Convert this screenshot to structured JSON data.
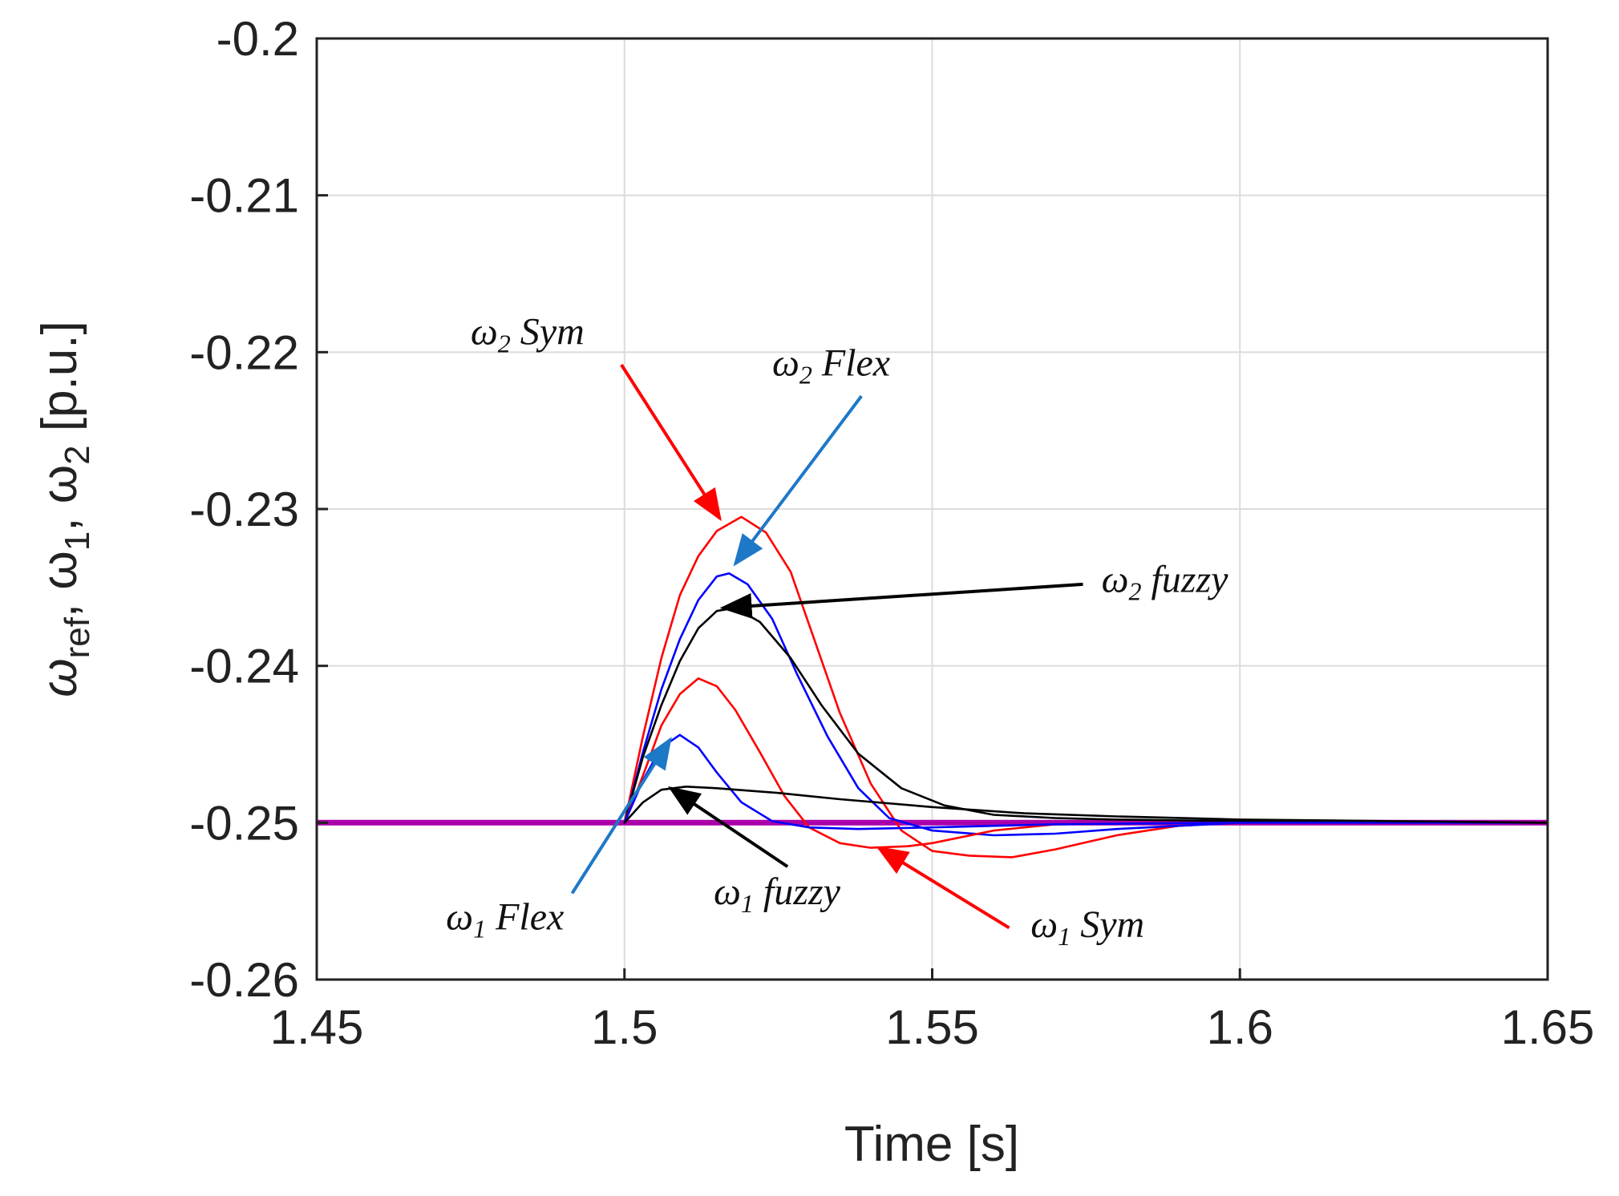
{
  "chart_data": {
    "type": "line",
    "title": "",
    "xlabel": "Time [s]",
    "ylabel": {
      "base": "ω",
      "ref_sub": "ref",
      "sep1": ", ω",
      "sub1": "1",
      "sep2": ", ω",
      "sub2": "2",
      "unit": " [p.u.]"
    },
    "xlim": [
      1.45,
      1.65
    ],
    "ylim": [
      -0.26,
      -0.2
    ],
    "grid": true,
    "x_ticks": [
      1.45,
      1.5,
      1.55,
      1.6,
      1.65
    ],
    "x_tick_labels": [
      "1.45",
      "1.5",
      "1.55",
      "1.6",
      "1.65"
    ],
    "y_ticks": [
      -0.26,
      -0.25,
      -0.24,
      -0.23,
      -0.22,
      -0.21,
      -0.2
    ],
    "y_tick_labels": [
      "-0.26",
      "-0.25",
      "-0.24",
      "-0.23",
      "-0.22",
      "-0.21",
      "-0.2"
    ],
    "series": [
      {
        "name": "ω ref",
        "color": "#aa00aa",
        "points": [
          [
            1.45,
            -0.25
          ],
          [
            1.65,
            -0.25
          ]
        ]
      },
      {
        "name": "ω2 Sym",
        "color": "#ff0000",
        "points": [
          [
            1.5,
            -0.25
          ],
          [
            1.503,
            -0.2445
          ],
          [
            1.506,
            -0.2395
          ],
          [
            1.509,
            -0.2355
          ],
          [
            1.512,
            -0.233
          ],
          [
            1.515,
            -0.2314
          ],
          [
            1.519,
            -0.2305
          ],
          [
            1.523,
            -0.2315
          ],
          [
            1.527,
            -0.234
          ],
          [
            1.531,
            -0.2385
          ],
          [
            1.535,
            -0.243
          ],
          [
            1.54,
            -0.2475
          ],
          [
            1.545,
            -0.2505
          ],
          [
            1.55,
            -0.2518
          ],
          [
            1.556,
            -0.2521
          ],
          [
            1.563,
            -0.2522
          ],
          [
            1.57,
            -0.2517
          ],
          [
            1.58,
            -0.2508
          ],
          [
            1.59,
            -0.2502
          ],
          [
            1.6,
            -0.25
          ],
          [
            1.65,
            -0.25
          ]
        ]
      },
      {
        "name": "ω2 Flex",
        "color": "#0000ff",
        "points": [
          [
            1.5,
            -0.25
          ],
          [
            1.503,
            -0.2455
          ],
          [
            1.506,
            -0.2415
          ],
          [
            1.509,
            -0.2383
          ],
          [
            1.512,
            -0.2358
          ],
          [
            1.515,
            -0.2343
          ],
          [
            1.517,
            -0.2341
          ],
          [
            1.52,
            -0.2348
          ],
          [
            1.524,
            -0.237
          ],
          [
            1.528,
            -0.2405
          ],
          [
            1.533,
            -0.2445
          ],
          [
            1.538,
            -0.2478
          ],
          [
            1.543,
            -0.2497
          ],
          [
            1.55,
            -0.2505
          ],
          [
            1.56,
            -0.2508
          ],
          [
            1.57,
            -0.2507
          ],
          [
            1.58,
            -0.2504
          ],
          [
            1.6,
            -0.25
          ],
          [
            1.65,
            -0.25
          ]
        ]
      },
      {
        "name": "ω2 fuzzy",
        "color": "#000000",
        "points": [
          [
            1.5,
            -0.25
          ],
          [
            1.503,
            -0.2458
          ],
          [
            1.506,
            -0.2425
          ],
          [
            1.509,
            -0.2397
          ],
          [
            1.512,
            -0.2376
          ],
          [
            1.515,
            -0.2365
          ],
          [
            1.518,
            -0.2363
          ],
          [
            1.522,
            -0.2372
          ],
          [
            1.527,
            -0.2395
          ],
          [
            1.532,
            -0.2425
          ],
          [
            1.538,
            -0.2456
          ],
          [
            1.545,
            -0.2478
          ],
          [
            1.552,
            -0.2489
          ],
          [
            1.56,
            -0.2495
          ],
          [
            1.57,
            -0.2497
          ],
          [
            1.58,
            -0.2498
          ],
          [
            1.6,
            -0.2499
          ],
          [
            1.65,
            -0.25
          ]
        ]
      },
      {
        "name": "ω1 Sym",
        "color": "#ff0000",
        "points": [
          [
            1.5,
            -0.25
          ],
          [
            1.503,
            -0.247
          ],
          [
            1.506,
            -0.2438
          ],
          [
            1.509,
            -0.2418
          ],
          [
            1.512,
            -0.2408
          ],
          [
            1.515,
            -0.2413
          ],
          [
            1.518,
            -0.2428
          ],
          [
            1.522,
            -0.2455
          ],
          [
            1.526,
            -0.2483
          ],
          [
            1.53,
            -0.2503
          ],
          [
            1.535,
            -0.2513
          ],
          [
            1.54,
            -0.2516
          ],
          [
            1.546,
            -0.2515
          ],
          [
            1.55,
            -0.2513
          ],
          [
            1.56,
            -0.2505
          ],
          [
            1.57,
            -0.2501
          ],
          [
            1.6,
            -0.25
          ],
          [
            1.65,
            -0.25
          ]
        ]
      },
      {
        "name": "ω1 Flex",
        "color": "#0000ff",
        "points": [
          [
            1.5,
            -0.25
          ],
          [
            1.503,
            -0.2473
          ],
          [
            1.506,
            -0.2452
          ],
          [
            1.509,
            -0.2444
          ],
          [
            1.512,
            -0.2452
          ],
          [
            1.515,
            -0.2468
          ],
          [
            1.519,
            -0.2487
          ],
          [
            1.524,
            -0.2499
          ],
          [
            1.53,
            -0.2503
          ],
          [
            1.538,
            -0.2504
          ],
          [
            1.55,
            -0.2503
          ],
          [
            1.57,
            -0.2501
          ],
          [
            1.6,
            -0.25
          ],
          [
            1.65,
            -0.25
          ]
        ]
      },
      {
        "name": "ω1 fuzzy",
        "color": "#000000",
        "points": [
          [
            1.5,
            -0.25
          ],
          [
            1.503,
            -0.2487
          ],
          [
            1.506,
            -0.2479
          ],
          [
            1.51,
            -0.2477
          ],
          [
            1.515,
            -0.2478
          ],
          [
            1.525,
            -0.2481
          ],
          [
            1.535,
            -0.2485
          ],
          [
            1.55,
            -0.249
          ],
          [
            1.565,
            -0.2494
          ],
          [
            1.58,
            -0.2496
          ],
          [
            1.6,
            -0.2498
          ],
          [
            1.65,
            -0.25
          ]
        ]
      }
    ],
    "annotations": [
      {
        "name": "annot-w2-sym",
        "symbol": "ω",
        "sub": "2",
        "text": " Sym",
        "color": "#ff0000",
        "label_at": [
          1.475,
          -0.2195
        ],
        "arrow_from": [
          1.4995,
          -0.2208
        ],
        "arrow_to": [
          1.5155,
          -0.2306
        ]
      },
      {
        "name": "annot-w2-flex",
        "symbol": "ω",
        "sub": "2",
        "text": " Flex",
        "color": "#1e78c8",
        "label_at": [
          1.524,
          -0.2215
        ],
        "arrow_from": [
          1.5385,
          -0.2228
        ],
        "arrow_to": [
          1.518,
          -0.2335
        ]
      },
      {
        "name": "annot-w2-fuzzy",
        "symbol": "ω",
        "sub": "2",
        "text": " fuzzy",
        "color": "#000000",
        "label_at": [
          1.5775,
          -0.2353
        ],
        "arrow_from": [
          1.5745,
          -0.2348
        ],
        "arrow_to": [
          1.516,
          -0.2363
        ]
      },
      {
        "name": "annot-w1-flex",
        "symbol": "ω",
        "sub": "1",
        "text": " Flex",
        "color": "#1e78c8",
        "label_at": [
          1.471,
          -0.2568
        ],
        "arrow_from": [
          1.4915,
          -0.2545
        ],
        "arrow_to": [
          1.5074,
          -0.2447
        ]
      },
      {
        "name": "annot-w1-fuzzy",
        "symbol": "ω",
        "sub": "1",
        "text": " fuzzy",
        "color": "#000000",
        "label_at": [
          1.5145,
          -0.2552
        ],
        "arrow_from": [
          1.5265,
          -0.2528
        ],
        "arrow_to": [
          1.5075,
          -0.2478
        ]
      },
      {
        "name": "annot-w1-sym",
        "symbol": "ω",
        "sub": "1",
        "text": " Sym",
        "color": "#ff0000",
        "label_at": [
          1.566,
          -0.2573
        ],
        "arrow_from": [
          1.5625,
          -0.2567
        ],
        "arrow_to": [
          1.5413,
          -0.2516
        ]
      }
    ]
  }
}
